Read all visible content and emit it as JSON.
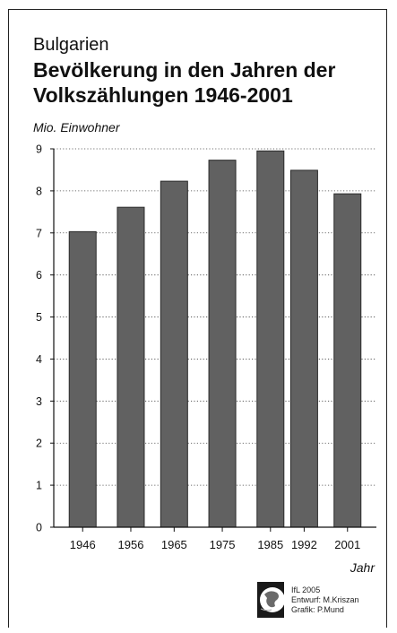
{
  "header": {
    "supertitle": "Bulgarien",
    "title": "Bevölkerung in den Jahren der Volkszählungen 1946-2001",
    "unit": "Mio. Einwohner"
  },
  "chart_data": {
    "type": "bar",
    "supertitle": "Bulgarien",
    "title": "Bevölkerung in den Jahren der Volkszählungen 1946-2001",
    "ylabel": "Mio. Einwohner",
    "xlabel": "Jahr",
    "x": [
      1946,
      1956,
      1965,
      1975,
      1985,
      1992,
      2001
    ],
    "categories": [
      "1946",
      "1956",
      "1965",
      "1975",
      "1985",
      "1992",
      "2001"
    ],
    "values": [
      7.03,
      7.61,
      8.23,
      8.73,
      8.95,
      8.49,
      7.93
    ],
    "ylim": [
      0,
      9
    ],
    "yticks": [
      "0",
      "1",
      "2",
      "3",
      "4",
      "5",
      "6",
      "7",
      "8",
      "9"
    ],
    "grid": true,
    "bar_color": "#616161"
  },
  "credit": {
    "line1": "IfL 2005",
    "line2": "Entwurf: M.Kriszan",
    "line3": "Grafik: P.Mund",
    "logo_icon": "globe-logo-icon"
  }
}
